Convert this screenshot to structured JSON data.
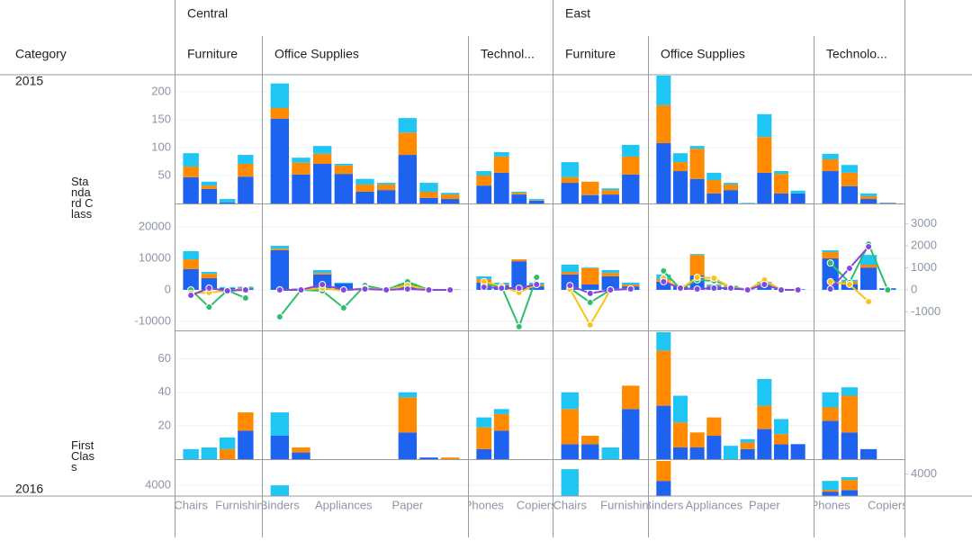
{
  "chart_data": {
    "type": "faceted-bar",
    "row_header": "Category",
    "columns": [
      {
        "label": "Central",
        "groups": [
          {
            "label": "Furniture",
            "categories": [
              "Chairs",
              null,
              null,
              "Furnishings"
            ]
          },
          {
            "label": "Office Supplies",
            "categories": [
              "Binders",
              null,
              null,
              "Appliances",
              null,
              null,
              "Paper",
              null,
              null
            ]
          },
          {
            "label": "Technol...",
            "categories": [
              "Phones",
              null,
              null,
              "Copiers"
            ]
          }
        ]
      },
      {
        "label": "East",
        "groups": [
          {
            "label": "Furniture",
            "categories": [
              "Chairs",
              null,
              null,
              "Furnishings"
            ]
          },
          {
            "label": "Office Supplies",
            "categories": [
              "Binders",
              null,
              null,
              "Appliances",
              null,
              null,
              "Paper",
              null,
              null
            ]
          },
          {
            "label": "Technolo...",
            "categories": [
              "Phones",
              null,
              null,
              "Copiers"
            ]
          }
        ]
      }
    ],
    "rows": [
      {
        "label": "2015",
        "subrows": [
          "Standard Class",
          "First Class"
        ]
      },
      {
        "label": "2016"
      }
    ],
    "bar_colors": [
      "#1e62f0",
      "#ff8a00",
      "#1fc6f3"
    ],
    "line_colors": [
      "#2ebd6b",
      "#fbc21a",
      "#8247e5"
    ],
    "panels": [
      {
        "ylim": [
          0,
          229
        ],
        "yticks": [
          50,
          100,
          150,
          200
        ],
        "cells": [
          {
            "bars": [
              [
                47,
                26,
                2,
                48
              ],
              [
                19,
                6,
                0,
                23
              ],
              [
                24,
                7,
                6,
                16
              ]
            ]
          },
          {
            "bars": [
              [
                152,
                52,
                71,
                53,
                21,
                24,
                87,
                10,
                8
              ],
              [
                19,
                21,
                18,
                15,
                13,
                10,
                40,
                11,
                8
              ],
              [
                44,
                9,
                14,
                3,
                10,
                3,
                26,
                16,
                3
              ]
            ]
          },
          {
            "bars": [
              [
                32,
                55,
                16,
                5
              ],
              [
                18,
                29,
                3,
                1
              ],
              [
                8,
                8,
                2,
                2
              ]
            ]
          },
          {
            "bars": [
              [
                37,
                15,
                16,
                52
              ],
              [
                10,
                24,
                8,
                32
              ],
              [
                27,
                0,
                3,
                21
              ]
            ]
          },
          {
            "bars": [
              [
                108,
                58,
                44,
                18,
                24,
                0,
                55,
                18,
                18
              ],
              [
                68,
                16,
                54,
                24,
                10,
                0,
                64,
                35,
                0
              ],
              [
                60,
                16,
                5,
                13,
                3,
                1,
                41,
                5,
                5
              ]
            ]
          },
          {
            "bars": [
              [
                58,
                31,
                8,
                1
              ],
              [
                21,
                24,
                5,
                0
              ],
              [
                10,
                14,
                5,
                0
              ]
            ]
          }
        ]
      },
      {
        "ylim": [
          -12900,
          26900
        ],
        "yticks": [
          -10000,
          0,
          10000,
          20000
        ],
        "y2lim": [
          -1840,
          3840
        ],
        "y2ticks": [
          -1000,
          0,
          1000,
          2000,
          3000
        ],
        "cells": [
          {
            "bars": [
              [
                6600,
                3700,
                600,
                500
              ],
              [
                3100,
                1400,
                0,
                200
              ],
              [
                2600,
                600,
                300,
                300
              ]
            ],
            "lines": [
              [
                0,
                -780,
                -20,
                -370
              ],
              [
                -160,
                -120,
                -40,
                40
              ],
              [
                -245,
                80,
                -40,
                0
              ]
            ]
          },
          {
            "bars": [
              [
                12600,
                300,
                4900,
                2000,
                400,
                200,
                1100,
                100,
                100
              ],
              [
                500,
                100,
                500,
                0,
                100,
                0,
                600,
                0,
                0
              ],
              [
                900,
                100,
                900,
                300,
                100,
                100,
                300,
                100,
                0
              ]
            ],
            "lines": [
              [
                -1220,
                0,
                -40,
                -820,
                200,
                0,
                370,
                0,
                0
              ],
              [
                0,
                0,
                80,
                -40,
                80,
                0,
                200,
                0,
                0
              ],
              [
                0,
                0,
                245,
                0,
                40,
                0,
                40,
                0,
                0
              ]
            ]
          },
          {
            "bars": [
              [
                2300,
                1400,
                9100,
                1100
              ],
              [
                1100,
                300,
                600,
                600
              ],
              [
                900,
                600,
                0,
                600
              ]
            ],
            "lines": [
              [
                245,
                160,
                -1670,
                570
              ],
              [
                370,
                160,
                -120,
                245
              ],
              [
                120,
                80,
                80,
                245
              ]
            ]
          },
          {
            "bars": [
              [
                4900,
                1700,
                4300,
                1100
              ],
              [
                800,
                5200,
                1100,
                600
              ],
              [
                2300,
                200,
                900,
                600
              ]
            ],
            "lines": [
              [
                80,
                -570,
                0,
                40
              ],
              [
                40,
                -1590,
                0,
                40
              ],
              [
                200,
                -160,
                0,
                40
              ]
            ]
          },
          {
            "bars": [
              [
                2600,
                1100,
                4600,
                1100,
                800,
                100,
                1100,
                300,
                200
              ],
              [
                800,
                0,
                6500,
                300,
                300,
                0,
                600,
                0,
                0
              ],
              [
                1500,
                200,
                300,
                300,
                200,
                0,
                900,
                0,
                0
              ]
            ],
            "lines": [
              [
                860,
                40,
                450,
                410,
                160,
                0,
                245,
                0,
                0
              ],
              [
                530,
                40,
                570,
                530,
                120,
                0,
                450,
                0,
                0
              ],
              [
                370,
                80,
                40,
                80,
                80,
                0,
                245,
                0,
                0
              ]
            ]
          },
          {
            "bars": [
              [
                10000,
                1700,
                7100,
                500
              ],
              [
                2000,
                900,
                900,
                0
              ],
              [
                600,
                600,
                3100,
                0
              ]
            ],
            "lines": [
              [
                1220,
                330,
                2080,
                0
              ],
              [
                370,
                245,
                -530,
                null
              ],
              [
                40,
                980,
                1960,
                null
              ]
            ]
          }
        ]
      },
      {
        "ylim": [
          0,
          76
        ],
        "yticks": [
          20,
          40,
          60
        ],
        "cells": [
          {
            "bars": [
              [
                0,
                0,
                0,
                17
              ],
              [
                0,
                0,
                6,
                11
              ],
              [
                6,
                7,
                7,
                0
              ]
            ]
          },
          {
            "bars": [
              [
                14,
                4,
                0,
                0,
                0,
                0,
                16,
                1,
                0
              ],
              [
                0,
                3,
                0,
                0,
                0,
                0,
                21,
                0,
                1
              ],
              [
                14,
                0,
                0,
                0,
                0,
                0,
                3,
                0,
                0
              ]
            ]
          },
          {
            "bars": [
              [
                6,
                17,
                0,
                0
              ],
              [
                13,
                10,
                0,
                0
              ],
              [
                6,
                3,
                0,
                0
              ]
            ]
          },
          {
            "bars": [
              [
                9,
                9,
                0,
                30
              ],
              [
                21,
                5,
                0,
                14
              ],
              [
                10,
                0,
                7,
                0
              ]
            ]
          },
          {
            "bars": [
              [
                32,
                7,
                7,
                14,
                0,
                6,
                18,
                9,
                9
              ],
              [
                33,
                15,
                9,
                11,
                0,
                4,
                14,
                6,
                0
              ],
              [
                12,
                16,
                0,
                0,
                8,
                2,
                16,
                9,
                0
              ]
            ]
          },
          {
            "bars": [
              [
                23,
                16,
                6,
                0
              ],
              [
                8,
                22,
                0,
                0
              ],
              [
                9,
                5,
                0,
                0
              ]
            ]
          }
        ]
      },
      {
        "ylim": [
          600,
          11700
        ],
        "yticks": [
          4000
        ],
        "y2lim": [
          600,
          6000
        ],
        "y2ticks": [
          4000
        ],
        "cells": [
          {
            "bars": [
              [
                0,
                0,
                0,
                0
              ],
              [
                0,
                0,
                0,
                0
              ],
              [
                0,
                0,
                0,
                0
              ]
            ]
          },
          {
            "bars": [
              [
                300,
                0,
                0,
                0,
                0,
                0,
                0,
                0,
                0
              ],
              [
                200,
                0,
                0,
                0,
                0,
                0,
                0,
                0,
                0
              ],
              [
                3500,
                0,
                0,
                0,
                0,
                0,
                0,
                0,
                0
              ]
            ]
          },
          {
            "bars": [
              [
                0,
                0,
                0,
                0
              ],
              [
                0,
                0,
                0,
                0
              ],
              [
                0,
                0,
                0,
                0
              ]
            ]
          },
          {
            "bars": [
              [
                300,
                0,
                0,
                0
              ],
              [
                200,
                0,
                0,
                0
              ],
              [
                8600,
                0,
                0,
                0
              ]
            ]
          },
          {
            "bars": [
              [
                5400,
                0,
                0,
                0,
                0,
                0,
                0,
                0,
                0
              ],
              [
                6600,
                0,
                0,
                0,
                0,
                0,
                0,
                0,
                0
              ],
              [
                500,
                0,
                0,
                0,
                0,
                0,
                0,
                0,
                0
              ]
            ]
          },
          {
            "bars": [
              [
                2000,
                2500,
                0,
                0
              ],
              [
                600,
                3200,
                0,
                0
              ],
              [
                2800,
                900,
                0,
                0
              ]
            ]
          }
        ]
      }
    ]
  }
}
